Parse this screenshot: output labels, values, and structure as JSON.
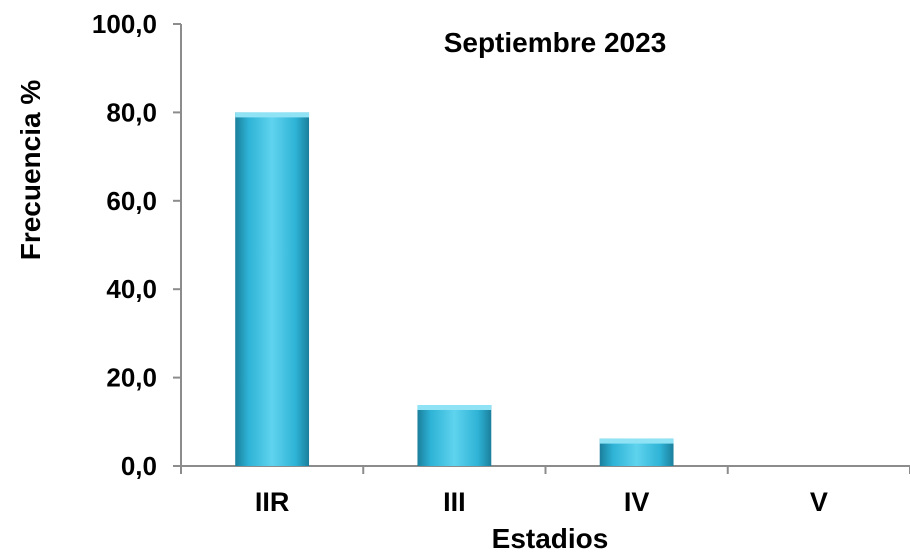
{
  "chart_data": {
    "type": "bar",
    "title": "Septiembre 2023",
    "xlabel": "Estadios",
    "ylabel": "Frecuencia %",
    "categories": [
      "IIR",
      "III",
      "IV",
      "V"
    ],
    "values": [
      80.0,
      13.8,
      6.2,
      0.0
    ],
    "ylim": [
      0,
      100
    ],
    "yticks": [
      "0,0",
      "20,0",
      "40,0",
      "60,0",
      "80,0",
      "100,0"
    ],
    "grid": false,
    "legend": "none",
    "colors": {
      "bar_light": "#5fd3ee",
      "bar_mid": "#2eb3d6",
      "bar_dark": "#1b7f9c",
      "axis": "#8c8c8c"
    }
  }
}
